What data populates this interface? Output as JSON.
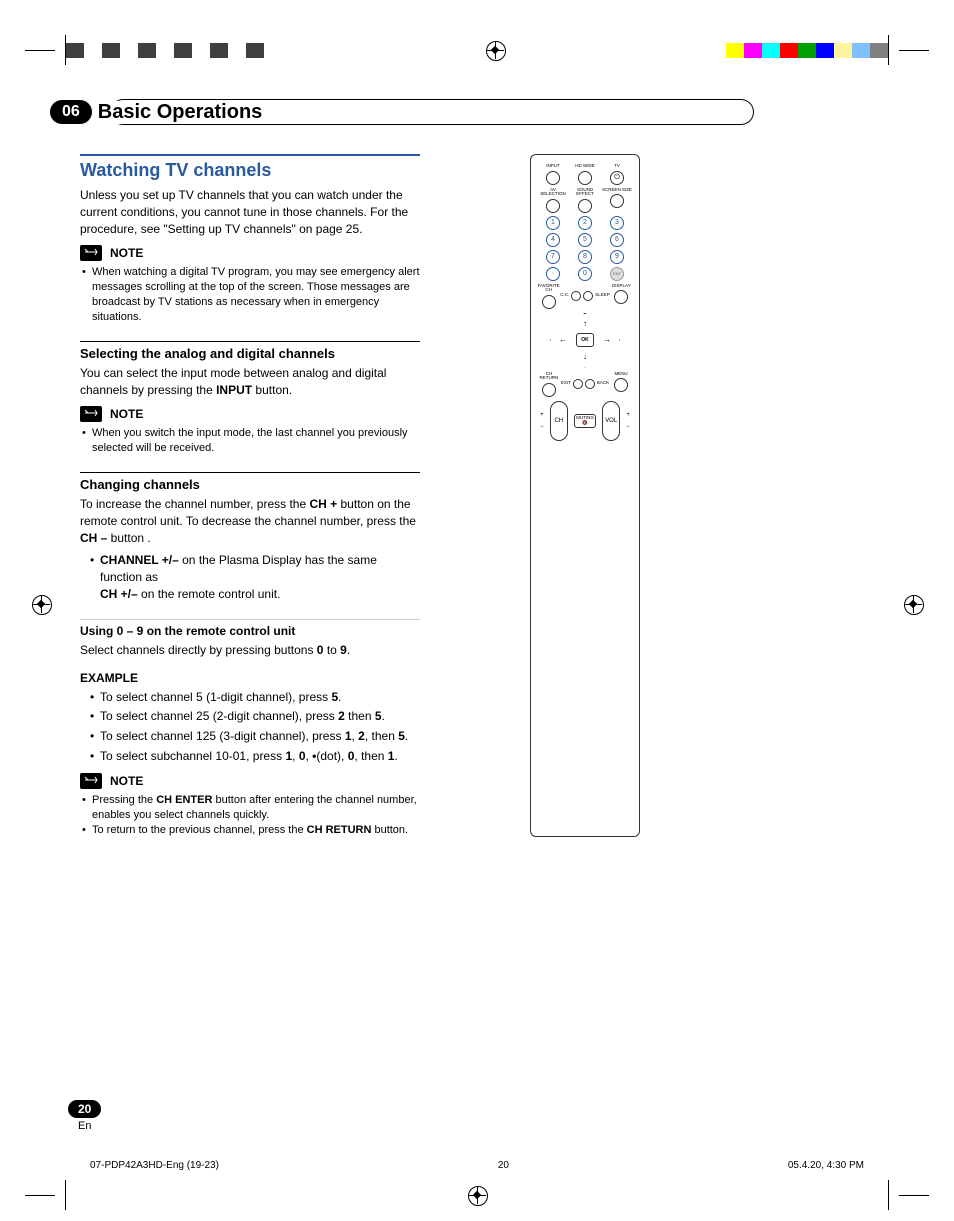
{
  "chapter": {
    "num": "06",
    "title": "Basic Operations"
  },
  "section": {
    "h2": "Watching TV channels",
    "intro": "Unless you set up TV channels that you can watch under the current conditions, you cannot tune in those channels. For the procedure, see \"Setting up TV channels\" on page 25."
  },
  "note1": {
    "label": "NOTE",
    "text": "When watching a digital TV program, you may see emergency alert messages scrolling at the top of the screen. Those messages are broadcast by TV stations as necessary when in emergency situations."
  },
  "sel": {
    "h3": "Selecting the analog and digital channels",
    "p1": "You can select the input mode between analog and digital channels by pressing the ",
    "p1b": "INPUT",
    "p1c": " button."
  },
  "note2": {
    "label": "NOTE",
    "text": "When you switch the input mode, the last channel you previously selected will be received."
  },
  "chg": {
    "h3": "Changing channels",
    "p1": "To increase the channel number, press the ",
    "p1b": "CH +",
    "p1c": " button on the remote control unit. To decrease the channel number, press the ",
    "p1d": "CH –",
    "p1e": " button .",
    "b1a": "CHANNEL +/–",
    "b1b": " on the Plasma Display has the same function as",
    "b2a": "CH +/–",
    "b2b": " on the remote control unit."
  },
  "using": {
    "h4": "Using 0 – 9 on the remote control unit",
    "p1": "Select channels directly by pressing buttons ",
    "p1b": "0",
    "p1c": " to ",
    "p1d": "9",
    "p1e": "."
  },
  "example": {
    "h5": "EXAMPLE",
    "items": [
      {
        "a": "To select channel 5 (1-digit channel), press ",
        "b": "5",
        "c": "."
      },
      {
        "a": "To select channel 25 (2-digit channel), press ",
        "b": "2",
        "c": " then ",
        "d": "5",
        "e": "."
      },
      {
        "a": "To select channel 125 (3-digit channel), press ",
        "b": "1",
        "c": ", ",
        "d": "2",
        "e": ", then ",
        "f": "5",
        "g": "."
      },
      {
        "a": "To select subchannel 10-01, press ",
        "b": "1",
        "c": ", ",
        "d": "0",
        "e": ", ",
        "f": "•",
        "g": "(dot), ",
        "h": "0",
        "i": ", then ",
        "j": "1",
        "k": "."
      }
    ]
  },
  "note3": {
    "label": "NOTE",
    "b1a": "Pressing the ",
    "b1b": "CH ENTER",
    "b1c": " button after entering the channel number, enables you select channels quickly.",
    "b2a": "To return to the previous channel, press the ",
    "b2b": "CH RETURN",
    "b2c": " button."
  },
  "remote": {
    "top": [
      {
        "lbl": "INPUT"
      },
      {
        "lbl": "HD WIDE"
      },
      {
        "lbl": "TV",
        "power": true
      }
    ],
    "row2": [
      {
        "lbl": "AV SELECTION"
      },
      {
        "lbl": "SOUND EFFECT"
      },
      {
        "lbl": "SCREEN SIZE"
      }
    ],
    "nums": [
      "1",
      "2",
      "3",
      "4",
      "5",
      "6",
      "7",
      "8",
      "9",
      "·",
      "0",
      "ENT"
    ],
    "fav_lbl": "FAVORITE CH",
    "cc_lbl": "C.C.",
    "sleep_lbl": "SLEEP",
    "disp_lbl": "DISPLAY",
    "ok": "OK",
    "ch_ret": "CH RETURN",
    "menu": "MENU",
    "exit": "EXIT",
    "back": "BACK",
    "ch": "CH",
    "vol": "VOL",
    "muting": "MUTING"
  },
  "page": {
    "num": "20",
    "lang": "En"
  },
  "footer": {
    "left": "07-PDP42A3HD-Eng (19-23)",
    "mid": "20",
    "right": "05.4.20, 4:30 PM"
  },
  "colorbar_left": [
    "#404040",
    "#ffffff",
    "#404040",
    "#ffffff",
    "#404040",
    "#ffffff",
    "#404040",
    "#ffffff",
    "#404040",
    "#ffffff",
    "#404040"
  ],
  "colorbar_right": [
    "#ffff00",
    "#ff00ff",
    "#00ffff",
    "#ff0000",
    "#00a000",
    "#0000ff",
    "#fff5a0",
    "#80c0ff",
    "#808080"
  ],
  "textcolor": "#000000",
  "accent": "#2a5a9e",
  "fontsize": {
    "h2": 18,
    "body": 12,
    "small": 11
  }
}
